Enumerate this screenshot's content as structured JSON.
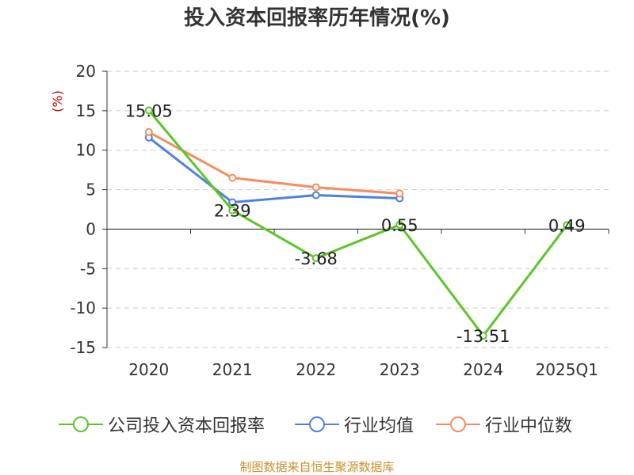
{
  "chart_data": {
    "type": "line",
    "title": "投入资本回报率历年情况(%)",
    "ylabel": "(%)",
    "xlabel": "",
    "categories": [
      "2020",
      "2021",
      "2022",
      "2023",
      "2024",
      "2025Q1"
    ],
    "ylim": [
      -15,
      20
    ],
    "yticks": [
      20,
      15,
      10,
      5,
      0,
      -5,
      -10,
      -15
    ],
    "grid": true,
    "legend_position": "bottom",
    "series": [
      {
        "name": "公司投入资本回报率",
        "color": "#5cc629",
        "values": [
          15.05,
          2.39,
          -3.68,
          0.55,
          -13.51,
          0.49
        ],
        "labels": [
          "15.05",
          "2.39",
          "-3.68",
          "0.55",
          "-13.51",
          "0.49"
        ]
      },
      {
        "name": "行业均值",
        "color": "#5080df",
        "values": [
          11.6,
          3.4,
          4.3,
          3.9,
          null,
          null
        ]
      },
      {
        "name": "行业中位数",
        "color": "#f78d5e",
        "values": [
          12.3,
          6.5,
          5.3,
          4.5,
          null,
          null
        ]
      }
    ]
  },
  "footer": {
    "source": "制图数据来自恒生聚源数据库"
  }
}
